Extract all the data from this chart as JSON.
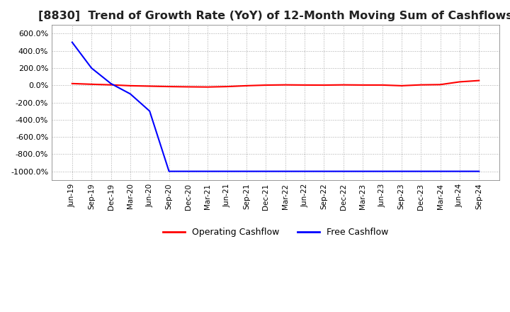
{
  "title": "[8830]  Trend of Growth Rate (YoY) of 12-Month Moving Sum of Cashflows",
  "title_fontsize": 11.5,
  "ylim": [
    -1100,
    700
  ],
  "yticks": [
    600,
    400,
    200,
    0,
    -200,
    -400,
    -600,
    -800,
    -1000
  ],
  "background_color": "#ffffff",
  "grid_color": "#aaaaaa",
  "operating_color": "#ff0000",
  "free_color": "#0000ff",
  "legend_labels": [
    "Operating Cashflow",
    "Free Cashflow"
  ],
  "x_labels": [
    "Jun-19",
    "Sep-19",
    "Dec-19",
    "Mar-20",
    "Jun-20",
    "Sep-20",
    "Dec-20",
    "Mar-21",
    "Jun-21",
    "Sep-21",
    "Dec-21",
    "Mar-22",
    "Jun-22",
    "Sep-22",
    "Dec-22",
    "Mar-23",
    "Jun-23",
    "Sep-23",
    "Dec-23",
    "Mar-24",
    "Jun-24",
    "Sep-24"
  ],
  "operating_cashflow": [
    20,
    12,
    5,
    -5,
    -10,
    -15,
    -18,
    -20,
    -15,
    -5,
    2,
    5,
    3,
    2,
    5,
    3,
    3,
    -5,
    5,
    8,
    40,
    55
  ],
  "free_cashflow": [
    500,
    200,
    20,
    -100,
    -300,
    -1000,
    -1000,
    -1000,
    -1000,
    -1000,
    -1000,
    -1000,
    -1000,
    -1000,
    -1000,
    -1000,
    -1000,
    -1000,
    -1000,
    -1000,
    -1000,
    -1000
  ]
}
